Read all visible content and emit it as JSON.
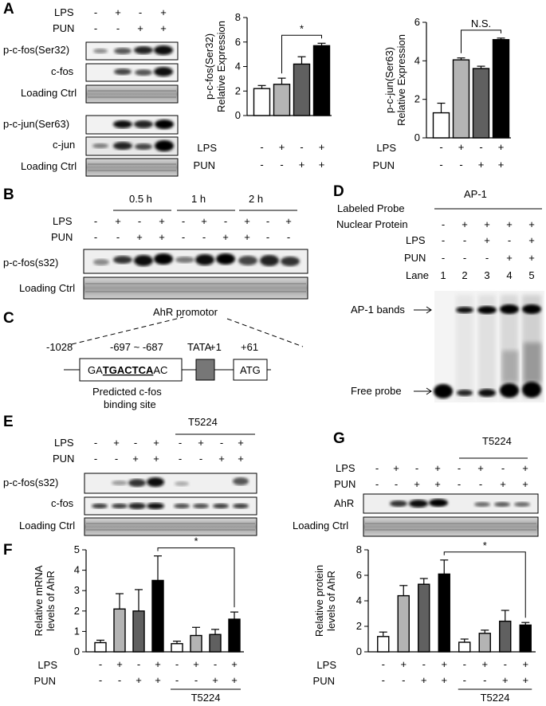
{
  "panels": {
    "A": "A",
    "B": "B",
    "C": "C",
    "D": "D",
    "E": "E",
    "F": "F",
    "G": "G"
  },
  "common": {
    "lps": "LPS",
    "pun": "PUN",
    "plus": "+",
    "minus": "-",
    "loading": "Loading Ctrl",
    "t5224": "T5224",
    "star": "*",
    "ns": "N.S."
  },
  "panel_a": {
    "lps": [
      "-",
      "+",
      "-",
      "+"
    ],
    "pun": [
      "-",
      "-",
      "+",
      "+"
    ],
    "blots": [
      "p-c-fos(Ser32)",
      "c-fos",
      "Loading Ctrl",
      "p-c-jun(Ser63)",
      "c-jun",
      "Loading Ctrl"
    ]
  },
  "panel_b": {
    "times": [
      "0.5 h",
      "1 h",
      "2 h"
    ],
    "lps": [
      "-",
      "+",
      "-",
      "+",
      "-",
      "+",
      "-",
      "+",
      "-",
      "+",
      "-",
      "+",
      "-",
      "+"
    ],
    "pun": [
      "-",
      "-",
      "+",
      "+",
      "-",
      "-",
      "+",
      "+",
      "-",
      "-",
      "+",
      "+",
      "-",
      "-"
    ],
    "blots": [
      "p-c-fos(s32)",
      "Loading Ctrl"
    ]
  },
  "panel_c": {
    "title": "AhR promotor",
    "pos1": "-1028",
    "pos2": "-697 ~ -687",
    "tata": "TATA",
    "pos3": "+1",
    "pos4": "+61",
    "seq_a": "GA",
    "seq_b": "TGACTCA",
    "seq_c": "AC",
    "atg": "ATG",
    "site1": "Predicted c-fos",
    "site2": "binding site"
  },
  "panel_d": {
    "rows": [
      "Labeled Probe",
      "Nuclear Protein",
      "LPS",
      "PUN",
      "Lane"
    ],
    "probe": "AP-1",
    "nuclear": [
      "-",
      "+",
      "+",
      "+",
      "+"
    ],
    "lps": [
      "-",
      "-",
      "+",
      "-",
      "+"
    ],
    "pun": [
      "-",
      "-",
      "-",
      "+",
      "+"
    ],
    "lanes": [
      "1",
      "2",
      "3",
      "4",
      "5"
    ],
    "bands": "AP-1 bands",
    "free": "Free probe"
  },
  "panel_e": {
    "lps": [
      "-",
      "+",
      "-",
      "+",
      "-",
      "+",
      "-",
      "+"
    ],
    "pun": [
      "-",
      "-",
      "+",
      "+",
      "-",
      "-",
      "+",
      "+"
    ],
    "blots": [
      "p-c-fos(s32)",
      "c-fos",
      "Loading Ctrl"
    ]
  },
  "panel_g": {
    "lps": [
      "-",
      "+",
      "-",
      "+",
      "-",
      "+",
      "-",
      "+"
    ],
    "pun": [
      "-",
      "-",
      "+",
      "+",
      "-",
      "-",
      "+",
      "+"
    ],
    "blots": [
      "AhR",
      "Loading Ctrl"
    ]
  },
  "chart_data": [
    {
      "id": "A1",
      "type": "bar",
      "ylabel": "p-c-fos(Ser32)\nRelative Expression",
      "ylim": [
        0,
        8
      ],
      "yticks": [
        0,
        2,
        4,
        6,
        8
      ],
      "values": [
        2.2,
        2.55,
        4.2,
        5.7
      ],
      "errors": [
        0.25,
        0.5,
        0.6,
        0.2
      ],
      "colors": [
        "#ffffff",
        "#b4b4b4",
        "#606060",
        "#000000"
      ],
      "lps": [
        "-",
        "+",
        "-",
        "+"
      ],
      "pun": [
        "-",
        "-",
        "+",
        "+"
      ],
      "sig": {
        "from": 1,
        "to": 3,
        "label": "*"
      }
    },
    {
      "id": "A2",
      "type": "bar",
      "ylabel": "p-c-jun(Ser63)\nRelative Expression",
      "ylim": [
        0,
        6
      ],
      "yticks": [
        0,
        2,
        4,
        6
      ],
      "values": [
        1.3,
        4.05,
        3.6,
        5.1
      ],
      "errors": [
        0.5,
        0.1,
        0.12,
        0.08
      ],
      "colors": [
        "#ffffff",
        "#b4b4b4",
        "#606060",
        "#000000"
      ],
      "lps": [
        "-",
        "+",
        "-",
        "+"
      ],
      "pun": [
        "-",
        "-",
        "+",
        "+"
      ],
      "sig": {
        "from": 1,
        "to": 3,
        "label": "N.S."
      }
    },
    {
      "id": "F",
      "type": "bar",
      "ylabel": "Relative mRNA\nlevels of AhR",
      "ylim": [
        0,
        5
      ],
      "yticks": [
        0,
        1,
        2,
        3,
        4,
        5
      ],
      "values": [
        0.45,
        2.1,
        2.0,
        3.5,
        0.4,
        0.8,
        0.85,
        1.6
      ],
      "errors": [
        0.12,
        0.75,
        1.05,
        1.2,
        0.12,
        0.4,
        0.25,
        0.35
      ],
      "colors": [
        "#ffffff",
        "#b4b4b4",
        "#606060",
        "#000000",
        "#ffffff",
        "#b4b4b4",
        "#606060",
        "#000000"
      ],
      "lps": [
        "-",
        "+",
        "-",
        "+",
        "-",
        "+",
        "-",
        "+"
      ],
      "pun": [
        "-",
        "-",
        "+",
        "+",
        "-",
        "-",
        "+",
        "+"
      ],
      "group": "T5224",
      "sig": {
        "from": 3,
        "to": 7,
        "label": "*"
      }
    },
    {
      "id": "G",
      "type": "bar",
      "ylabel": "Relative protein\nlevels of AhR",
      "ylim": [
        0,
        8
      ],
      "yticks": [
        0,
        2,
        4,
        6,
        8
      ],
      "values": [
        1.2,
        4.4,
        5.3,
        6.1,
        0.75,
        1.45,
        2.4,
        2.1
      ],
      "errors": [
        0.35,
        0.8,
        0.45,
        1.1,
        0.25,
        0.25,
        0.85,
        0.2
      ],
      "colors": [
        "#ffffff",
        "#b4b4b4",
        "#606060",
        "#000000",
        "#ffffff",
        "#b4b4b4",
        "#606060",
        "#000000"
      ],
      "lps": [
        "-",
        "+",
        "-",
        "+",
        "-",
        "+",
        "-",
        "+"
      ],
      "pun": [
        "-",
        "-",
        "+",
        "+",
        "-",
        "-",
        "+",
        "+"
      ],
      "group": "T5224",
      "sig": {
        "from": 3,
        "to": 7,
        "label": "*"
      }
    }
  ]
}
